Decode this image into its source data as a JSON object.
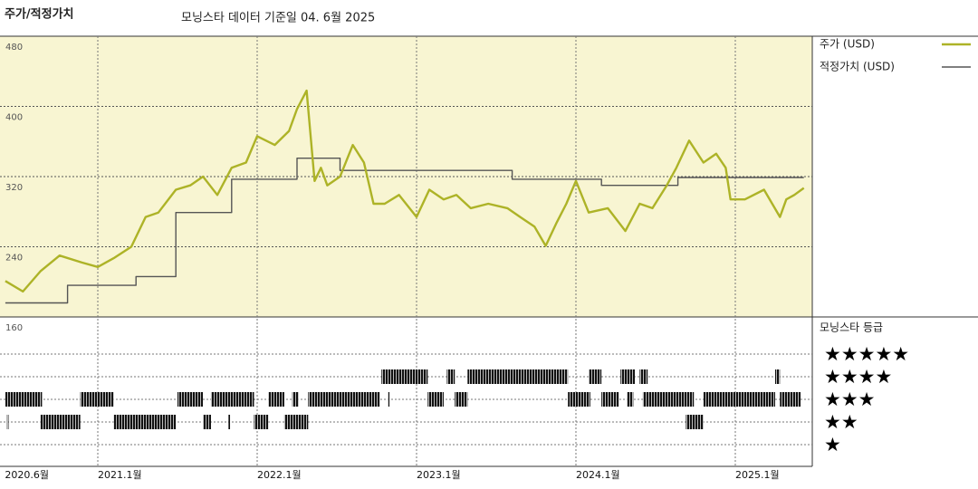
{
  "chart_data": {
    "type": "line",
    "title": "주가/적정가치",
    "subtitle": "모닝스타 데이터 기준일 04. 6월 2025",
    "xlim": [
      2020.417,
      2025.483
    ],
    "xticks": [
      {
        "value": 2020.417,
        "label": "2020.6월"
      },
      {
        "value": 2021,
        "label": "2021.1월"
      },
      {
        "value": 2022,
        "label": "2022.1월"
      },
      {
        "value": 2023,
        "label": "2023.1월"
      },
      {
        "value": 2024,
        "label": "2024.1월"
      },
      {
        "value": 2025,
        "label": "2025.1월"
      }
    ],
    "ylim": [
      160,
      480
    ],
    "yticks": [
      160,
      240,
      320,
      400,
      480
    ],
    "grid": true,
    "legend": "right",
    "series": [
      {
        "name": "주가 (USD)",
        "color": "#adb327",
        "x": [
          2020.42,
          2020.53,
          2020.64,
          2020.76,
          2020.9,
          2021.0,
          2021.1,
          2021.21,
          2021.3,
          2021.38,
          2021.49,
          2021.58,
          2021.66,
          2021.75,
          2021.84,
          2021.93,
          2022.0,
          2022.11,
          2022.2,
          2022.25,
          2022.31,
          2022.33,
          2022.36,
          2022.4,
          2022.44,
          2022.52,
          2022.6,
          2022.67,
          2022.73,
          2022.8,
          2022.89,
          2023.0,
          2023.08,
          2023.17,
          2023.25,
          2023.34,
          2023.45,
          2023.57,
          2023.65,
          2023.74,
          2023.81,
          2023.88,
          2023.94,
          2024.0,
          2024.08,
          2024.2,
          2024.31,
          2024.4,
          2024.48,
          2024.57,
          2024.63,
          2024.71,
          2024.8,
          2024.88,
          2024.94,
          2024.97,
          2025.06,
          2025.18,
          2025.28,
          2025.32,
          2025.37,
          2025.43
        ],
        "values": [
          201,
          189,
          212,
          230,
          222,
          217,
          227,
          240,
          274,
          279,
          305,
          310,
          320,
          299,
          330,
          336,
          366,
          356,
          372,
          397,
          418,
          377,
          315,
          330,
          310,
          320,
          356,
          336,
          289,
          289,
          299,
          274,
          305,
          294,
          299,
          284,
          289,
          284,
          274,
          263,
          241,
          268,
          289,
          315,
          279,
          284,
          258,
          289,
          284,
          310,
          330,
          361,
          336,
          346,
          330,
          294,
          294,
          305,
          274,
          294,
          299,
          307
        ]
      },
      {
        "name": "적정가치 (USD)",
        "color": "#555555",
        "step": true,
        "x": [
          2020.42,
          2020.81,
          2021.24,
          2021.49,
          2021.84,
          2022.25,
          2022.52,
          2023.6,
          2024.16,
          2024.64,
          2025.43
        ],
        "values": [
          176,
          196,
          206,
          279,
          317,
          341,
          327,
          317,
          310,
          319,
          319
        ]
      }
    ],
    "rating_title": "모닝스타 등급",
    "rating_ticks": [
      {
        "value": 5,
        "label": "★★★★★"
      },
      {
        "value": 4,
        "label": "★★★★"
      },
      {
        "value": 3,
        "label": "★★★"
      },
      {
        "value": 2,
        "label": "★★"
      },
      {
        "value": 1,
        "label": "★"
      }
    ],
    "rating_color": "#111111",
    "ratings": [
      {
        "rating": 4,
        "start": 2022.78,
        "end": 2023.07
      },
      {
        "rating": 4,
        "start": 2023.19,
        "end": 2023.24
      },
      {
        "rating": 4,
        "start": 2023.32,
        "end": 2023.95
      },
      {
        "rating": 4,
        "start": 2024.08,
        "end": 2024.16
      },
      {
        "rating": 4,
        "start": 2024.28,
        "end": 2024.37
      },
      {
        "rating": 4,
        "start": 2024.4,
        "end": 2024.45
      },
      {
        "rating": 4,
        "start": 2025.25,
        "end": 2025.28
      },
      {
        "rating": 3,
        "start": 2020.42,
        "end": 2020.65
      },
      {
        "rating": 3,
        "start": 2020.89,
        "end": 2021.1
      },
      {
        "rating": 3,
        "start": 2021.5,
        "end": 2021.66
      },
      {
        "rating": 3,
        "start": 2021.71,
        "end": 2021.98
      },
      {
        "rating": 3,
        "start": 2022.07,
        "end": 2022.17
      },
      {
        "rating": 3,
        "start": 2022.22,
        "end": 2022.26
      },
      {
        "rating": 3,
        "start": 2022.32,
        "end": 2022.77
      },
      {
        "rating": 3,
        "start": 2022.82,
        "end": 2022.83
      },
      {
        "rating": 3,
        "start": 2023.07,
        "end": 2023.17
      },
      {
        "rating": 3,
        "start": 2023.24,
        "end": 2023.32
      },
      {
        "rating": 3,
        "start": 2023.95,
        "end": 2024.09
      },
      {
        "rating": 3,
        "start": 2024.16,
        "end": 2024.27
      },
      {
        "rating": 3,
        "start": 2024.32,
        "end": 2024.36
      },
      {
        "rating": 3,
        "start": 2024.42,
        "end": 2024.74
      },
      {
        "rating": 3,
        "start": 2024.8,
        "end": 2025.25
      },
      {
        "rating": 3,
        "start": 2025.28,
        "end": 2025.41
      },
      {
        "rating": 2,
        "start": 2020.43,
        "end": 2020.44
      },
      {
        "rating": 2,
        "start": 2020.64,
        "end": 2020.89
      },
      {
        "rating": 2,
        "start": 2021.1,
        "end": 2021.49
      },
      {
        "rating": 2,
        "start": 2021.66,
        "end": 2021.71
      },
      {
        "rating": 2,
        "start": 2021.82,
        "end": 2021.83
      },
      {
        "rating": 2,
        "start": 2021.98,
        "end": 2022.07
      },
      {
        "rating": 2,
        "start": 2022.17,
        "end": 2022.32
      },
      {
        "rating": 2,
        "start": 2024.69,
        "end": 2024.8
      }
    ]
  }
}
